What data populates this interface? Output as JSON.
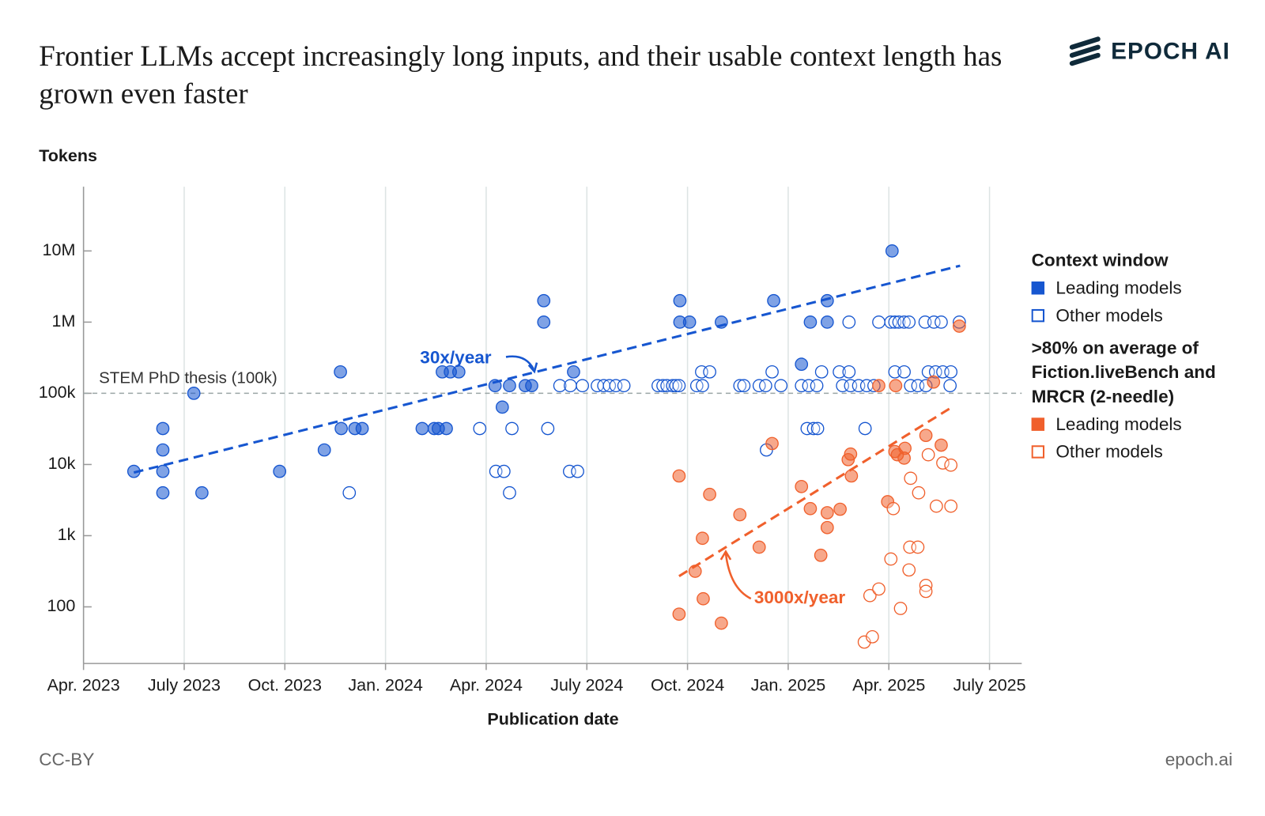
{
  "branding": {
    "logo": "EPOCH AI",
    "license": "CC-BY",
    "site": "epoch.ai"
  },
  "chart_data": {
    "type": "scatter",
    "title": "Frontier LLMs accept increasingly long inputs, and their usable context length has grown even faster",
    "y_label": "Tokens",
    "x_label": "Publication date",
    "yscale": "log",
    "grid": "x",
    "xlim": [
      2023.25,
      2025.58
    ],
    "ylim": [
      16,
      80000000
    ],
    "xticks": [
      {
        "value": 2023.25,
        "label": "Apr. 2023"
      },
      {
        "value": 2023.5,
        "label": "July 2023"
      },
      {
        "value": 2023.75,
        "label": "Oct. 2023"
      },
      {
        "value": 2024,
        "label": "Jan. 2024"
      },
      {
        "value": 2024.25,
        "label": "Apr. 2024"
      },
      {
        "value": 2024.5,
        "label": "July 2024"
      },
      {
        "value": 2024.75,
        "label": "Oct. 2024"
      },
      {
        "value": 2025,
        "label": "Jan. 2025"
      },
      {
        "value": 2025.25,
        "label": "Apr. 2025"
      },
      {
        "value": 2025.5,
        "label": "July 2025"
      }
    ],
    "yticks": [
      100,
      {
        "value": 1000,
        "label": "1k"
      },
      {
        "value": 10000,
        "label": "10k"
      },
      {
        "value": 100000,
        "label": "100k"
      },
      {
        "value": 1000000,
        "label": "1M"
      },
      {
        "value": 10000000,
        "label": "10M"
      }
    ],
    "reference_line": {
      "value": 100000,
      "label": "STEM PhD thesis (100k)"
    },
    "trend_lines": [
      {
        "label": "30x/year",
        "color": "#1656d0",
        "x": [
          2023.375,
          2025.427
        ],
        "y": [
          7700,
          6200000
        ]
      },
      {
        "label": "3000x/year",
        "color": "#f0602c",
        "x": [
          2024.729,
          2025.403
        ],
        "y": [
          270,
          62000
        ]
      }
    ],
    "groups": [
      {
        "title": "Context window",
        "series": [
          {
            "name": "Leading models",
            "color": "#1656d0",
            "filled": true,
            "x": [
              2023.375,
              2023.447,
              2023.447,
              2023.447,
              2023.447,
              2023.524,
              2023.544,
              2023.737,
              2023.848,
              2023.888,
              2023.89,
              2023.924,
              2023.942,
              2024.091,
              2024.121,
              2024.131,
              2024.151,
              2024.141,
              2024.161,
              2024.182,
              2024.272,
              2024.29,
              2024.308,
              2024.347,
              2024.363,
              2024.393,
              2024.393,
              2024.467,
              2024.731,
              2024.731,
              2024.755,
              2024.834,
              2024.964,
              2025.033,
              2025.055,
              2025.097,
              2025.097,
              2025.258
            ],
            "values": [
              8000,
              32000,
              16000,
              8000,
              4000,
              100000,
              4000,
              8000,
              16000,
              200000,
              32000,
              32000,
              32000,
              32000,
              32000,
              32000,
              32000,
              200000,
              200000,
              200000,
              128000,
              64000,
              128000,
              128000,
              128000,
              2000000,
              1000000,
              200000,
              2000000,
              1000000,
              1000000,
              1000000,
              2000000,
              256000,
              1000000,
              2000000,
              1000000,
              10000000
            ]
          },
          {
            "name": "Other models",
            "color": "#1656d0",
            "filled": false,
            "x": [
              2024.234,
              2024.274,
              2024.294,
              2024.308,
              2024.314,
              2023.91,
              2024.403,
              2024.457,
              2024.477,
              2024.433,
              2024.459,
              2024.489,
              2024.526,
              2024.542,
              2024.556,
              2024.572,
              2024.592,
              2024.677,
              2024.689,
              2024.699,
              2024.713,
              2024.721,
              2024.729,
              2024.773,
              2024.787,
              2024.785,
              2024.805,
              2024.88,
              2024.89,
              2024.928,
              2024.944,
              2024.982,
              2024.96,
              2024.946,
              2025.033,
              2025.051,
              2025.071,
              2025.047,
              2025.063,
              2025.073,
              2025.083,
              2025.151,
              2025.127,
              2025.151,
              2025.135,
              2025.155,
              2025.175,
              2025.195,
              2025.213,
              2025.191,
              2025.225,
              2025.255,
              2025.265,
              2025.275,
              2025.288,
              2025.3,
              2025.265,
              2025.288,
              2025.304,
              2025.322,
              2025.342,
              2025.34,
              2025.362,
              2025.38,
              2025.348,
              2025.366,
              2025.384,
              2025.404,
              2025.402,
              2025.425
            ],
            "values": [
              32000,
              8000,
              8000,
              4000,
              32000,
              4000,
              32000,
              8000,
              8000,
              128000,
              128000,
              128000,
              128000,
              128000,
              128000,
              128000,
              128000,
              128000,
              128000,
              128000,
              128000,
              128000,
              128000,
              128000,
              128000,
              200000,
              200000,
              128000,
              128000,
              128000,
              128000,
              128000,
              200000,
              16000,
              128000,
              128000,
              128000,
              32000,
              32000,
              32000,
              200000,
              1000000,
              200000,
              200000,
              128000,
              128000,
              128000,
              128000,
              128000,
              32000,
              1000000,
              1000000,
              1000000,
              1000000,
              1000000,
              1000000,
              200000,
              200000,
              128000,
              128000,
              128000,
              1000000,
              1000000,
              1000000,
              200000,
              200000,
              200000,
              200000,
              128000,
              1000000
            ]
          }
        ]
      },
      {
        "title": ">80% on average of Fiction.liveBench and MRCR (2-needle)",
        "series": [
          {
            "name": "Leading models",
            "color": "#f0602c",
            "filled": true,
            "x": [
              2024.729,
              2024.729,
              2024.769,
              2024.787,
              2024.789,
              2024.805,
              2024.834,
              2024.88,
              2024.928,
              2024.96,
              2025.033,
              2025.055,
              2025.081,
              2025.097,
              2025.097,
              2025.129,
              2025.149,
              2025.155,
              2025.157,
              2025.225,
              2025.247,
              2025.265,
              2025.267,
              2025.271,
              2025.288,
              2025.29,
              2025.342,
              2025.361,
              2025.38,
              2025.425
            ],
            "values": [
              6900,
              79,
              316,
              920,
              130,
              3800,
              59,
              1970,
              690,
              19700,
              4900,
              2400,
              530,
              2100,
              1300,
              2350,
              11700,
              14000,
              6900,
              128000,
              3000,
              15200,
              128000,
              13700,
              12300,
              16900,
              25600,
              144000,
              18700,
              877000
            ]
          },
          {
            "name": "Other models",
            "color": "#f0602c",
            "filled": false,
            "x": [
              2025.189,
              2025.209,
              2025.203,
              2025.225,
              2025.255,
              2025.261,
              2025.279,
              2025.3,
              2025.302,
              2025.322,
              2025.304,
              2025.324,
              2025.342,
              2025.342,
              2025.348,
              2025.368,
              2025.384,
              2025.404,
              2025.404
            ],
            "values": [
              32,
              38,
              144,
              178,
              470,
              2400,
              95,
              330,
              690,
              690,
              6400,
              4000,
              200,
              165,
              13700,
              2600,
              10500,
              9800,
              2600
            ]
          }
        ]
      }
    ]
  }
}
